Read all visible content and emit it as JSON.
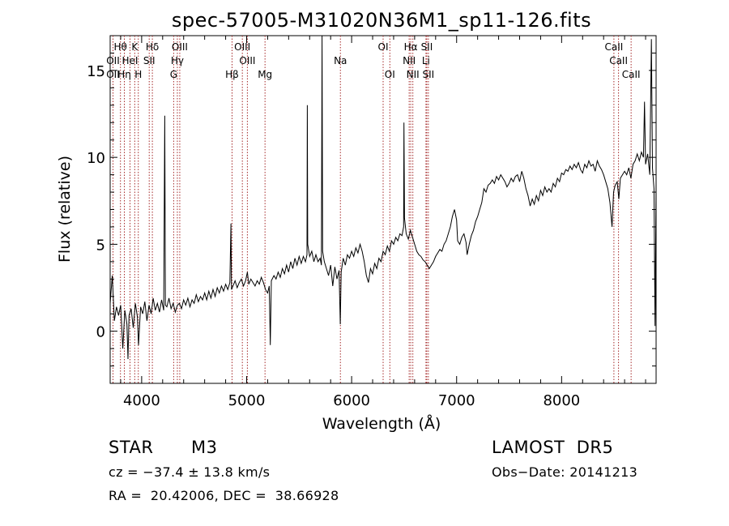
{
  "chart_data": {
    "type": "line",
    "title": "spec-57005-M31020N36M1_sp11-126.fits",
    "xlabel": "Wavelength (Å)",
    "ylabel": "Flux (relative)",
    "xlim": [
      3700,
      8900
    ],
    "ylim": [
      -3,
      17
    ],
    "xticks": [
      4000,
      5000,
      6000,
      7000,
      8000
    ],
    "yticks": [
      0,
      5,
      10,
      15
    ],
    "grid": false,
    "series": [
      {
        "points": [
          [
            3700,
            1.6
          ],
          [
            3720,
            3.2
          ],
          [
            3740,
            0.6
          ],
          [
            3760,
            1.4
          ],
          [
            3780,
            0.9
          ],
          [
            3800,
            1.5
          ],
          [
            3820,
            -1.0
          ],
          [
            3840,
            1.2
          ],
          [
            3860,
            0.4
          ],
          [
            3870,
            -1.6
          ],
          [
            3880,
            0.9
          ],
          [
            3900,
            1.3
          ],
          [
            3920,
            0.2
          ],
          [
            3940,
            1.6
          ],
          [
            3960,
            0.8
          ],
          [
            3970,
            -0.8
          ],
          [
            3990,
            1.4
          ],
          [
            4010,
            1.0
          ],
          [
            4030,
            1.7
          ],
          [
            4050,
            0.6
          ],
          [
            4070,
            1.5
          ],
          [
            4090,
            1.0
          ],
          [
            4110,
            1.9
          ],
          [
            4130,
            1.2
          ],
          [
            4150,
            1.6
          ],
          [
            4170,
            1.1
          ],
          [
            4190,
            1.8
          ],
          [
            4210,
            1.2
          ],
          [
            4220,
            12.4
          ],
          [
            4226,
            1.5
          ],
          [
            4240,
            1.4
          ],
          [
            4260,
            1.9
          ],
          [
            4280,
            1.3
          ],
          [
            4300,
            1.6
          ],
          [
            4320,
            1.1
          ],
          [
            4340,
            1.5
          ],
          [
            4360,
            1.6
          ],
          [
            4380,
            1.3
          ],
          [
            4400,
            1.8
          ],
          [
            4420,
            1.5
          ],
          [
            4440,
            1.9
          ],
          [
            4460,
            1.4
          ],
          [
            4480,
            1.8
          ],
          [
            4500,
            1.6
          ],
          [
            4520,
            2.1
          ],
          [
            4540,
            1.7
          ],
          [
            4560,
            2.0
          ],
          [
            4580,
            1.8
          ],
          [
            4600,
            2.2
          ],
          [
            4620,
            1.8
          ],
          [
            4640,
            2.3
          ],
          [
            4660,
            1.9
          ],
          [
            4680,
            2.4
          ],
          [
            4700,
            2.0
          ],
          [
            4720,
            2.5
          ],
          [
            4740,
            2.2
          ],
          [
            4760,
            2.6
          ],
          [
            4780,
            2.3
          ],
          [
            4800,
            2.7
          ],
          [
            4820,
            2.4
          ],
          [
            4840,
            2.8
          ],
          [
            4850,
            6.2
          ],
          [
            4856,
            2.4
          ],
          [
            4870,
            2.6
          ],
          [
            4890,
            2.9
          ],
          [
            4910,
            2.5
          ],
          [
            4930,
            2.8
          ],
          [
            4950,
            3.0
          ],
          [
            4970,
            2.6
          ],
          [
            4990,
            2.9
          ],
          [
            5007,
            3.4
          ],
          [
            5020,
            2.7
          ],
          [
            5040,
            3.0
          ],
          [
            5060,
            2.8
          ],
          [
            5080,
            2.6
          ],
          [
            5100,
            2.9
          ],
          [
            5120,
            2.7
          ],
          [
            5140,
            3.1
          ],
          [
            5160,
            2.8
          ],
          [
            5180,
            2.4
          ],
          [
            5200,
            2.2
          ],
          [
            5215,
            2.6
          ],
          [
            5225,
            -0.8
          ],
          [
            5235,
            2.9
          ],
          [
            5260,
            3.2
          ],
          [
            5280,
            3.0
          ],
          [
            5300,
            3.4
          ],
          [
            5320,
            3.1
          ],
          [
            5340,
            3.6
          ],
          [
            5360,
            3.3
          ],
          [
            5380,
            3.8
          ],
          [
            5400,
            3.4
          ],
          [
            5420,
            4.0
          ],
          [
            5440,
            3.6
          ],
          [
            5460,
            4.2
          ],
          [
            5480,
            3.8
          ],
          [
            5500,
            4.3
          ],
          [
            5520,
            3.9
          ],
          [
            5540,
            4.3
          ],
          [
            5560,
            4.0
          ],
          [
            5575,
            4.4
          ],
          [
            5578,
            13.0
          ],
          [
            5582,
            5.0
          ],
          [
            5600,
            4.3
          ],
          [
            5620,
            4.6
          ],
          [
            5640,
            4.0
          ],
          [
            5660,
            4.4
          ],
          [
            5680,
            4.0
          ],
          [
            5700,
            4.2
          ],
          [
            5712,
            3.8
          ],
          [
            5718,
            17.0
          ],
          [
            5724,
            4.6
          ],
          [
            5740,
            4.0
          ],
          [
            5760,
            3.6
          ],
          [
            5780,
            3.2
          ],
          [
            5800,
            3.8
          ],
          [
            5820,
            2.6
          ],
          [
            5840,
            3.7
          ],
          [
            5860,
            3.0
          ],
          [
            5880,
            3.5
          ],
          [
            5892,
            0.4
          ],
          [
            5900,
            3.4
          ],
          [
            5920,
            4.2
          ],
          [
            5940,
            3.8
          ],
          [
            5960,
            4.4
          ],
          [
            5980,
            4.2
          ],
          [
            6000,
            4.6
          ],
          [
            6020,
            4.3
          ],
          [
            6040,
            4.8
          ],
          [
            6060,
            4.5
          ],
          [
            6080,
            5.0
          ],
          [
            6100,
            4.6
          ],
          [
            6120,
            4.0
          ],
          [
            6140,
            3.2
          ],
          [
            6160,
            2.8
          ],
          [
            6180,
            3.6
          ],
          [
            6200,
            3.3
          ],
          [
            6220,
            3.9
          ],
          [
            6240,
            3.6
          ],
          [
            6260,
            4.2
          ],
          [
            6280,
            4.0
          ],
          [
            6300,
            4.6
          ],
          [
            6320,
            4.4
          ],
          [
            6340,
            4.9
          ],
          [
            6360,
            4.6
          ],
          [
            6380,
            5.2
          ],
          [
            6400,
            5.0
          ],
          [
            6420,
            5.4
          ],
          [
            6440,
            5.2
          ],
          [
            6460,
            5.6
          ],
          [
            6480,
            5.5
          ],
          [
            6495,
            6.0
          ],
          [
            6498,
            12.0
          ],
          [
            6504,
            6.5
          ],
          [
            6520,
            5.6
          ],
          [
            6540,
            5.3
          ],
          [
            6560,
            5.8
          ],
          [
            6580,
            5.4
          ],
          [
            6600,
            5.0
          ],
          [
            6620,
            4.6
          ],
          [
            6640,
            4.4
          ],
          [
            6660,
            4.3
          ],
          [
            6680,
            4.1
          ],
          [
            6700,
            4.0
          ],
          [
            6720,
            3.8
          ],
          [
            6740,
            3.6
          ],
          [
            6760,
            3.8
          ],
          [
            6780,
            4.0
          ],
          [
            6800,
            4.3
          ],
          [
            6820,
            4.5
          ],
          [
            6840,
            4.7
          ],
          [
            6860,
            4.6
          ],
          [
            6880,
            5.0
          ],
          [
            6900,
            5.2
          ],
          [
            6920,
            5.6
          ],
          [
            6940,
            6.0
          ],
          [
            6960,
            6.6
          ],
          [
            6980,
            7.0
          ],
          [
            7000,
            6.4
          ],
          [
            7010,
            5.2
          ],
          [
            7030,
            5.0
          ],
          [
            7050,
            5.4
          ],
          [
            7070,
            5.6
          ],
          [
            7090,
            5.1
          ],
          [
            7100,
            4.4
          ],
          [
            7120,
            5.0
          ],
          [
            7140,
            5.5
          ],
          [
            7160,
            5.8
          ],
          [
            7180,
            6.3
          ],
          [
            7200,
            6.6
          ],
          [
            7220,
            7.0
          ],
          [
            7240,
            7.4
          ],
          [
            7260,
            8.2
          ],
          [
            7280,
            8.0
          ],
          [
            7300,
            8.4
          ],
          [
            7320,
            8.5
          ],
          [
            7340,
            8.7
          ],
          [
            7360,
            8.5
          ],
          [
            7380,
            8.9
          ],
          [
            7400,
            8.7
          ],
          [
            7420,
            9.0
          ],
          [
            7440,
            8.8
          ],
          [
            7460,
            8.6
          ],
          [
            7480,
            8.3
          ],
          [
            7500,
            8.5
          ],
          [
            7520,
            8.8
          ],
          [
            7540,
            8.6
          ],
          [
            7560,
            8.9
          ],
          [
            7580,
            9.0
          ],
          [
            7600,
            8.6
          ],
          [
            7620,
            9.2
          ],
          [
            7640,
            8.8
          ],
          [
            7660,
            8.2
          ],
          [
            7680,
            7.8
          ],
          [
            7700,
            7.2
          ],
          [
            7720,
            7.6
          ],
          [
            7740,
            7.3
          ],
          [
            7760,
            7.8
          ],
          [
            7780,
            7.5
          ],
          [
            7800,
            8.1
          ],
          [
            7820,
            7.8
          ],
          [
            7840,
            8.3
          ],
          [
            7860,
            8.0
          ],
          [
            7880,
            8.2
          ],
          [
            7900,
            8.0
          ],
          [
            7920,
            8.5
          ],
          [
            7940,
            8.3
          ],
          [
            7960,
            8.8
          ],
          [
            7980,
            8.6
          ],
          [
            8000,
            9.1
          ],
          [
            8020,
            9.0
          ],
          [
            8040,
            9.3
          ],
          [
            8060,
            9.2
          ],
          [
            8080,
            9.5
          ],
          [
            8100,
            9.3
          ],
          [
            8120,
            9.6
          ],
          [
            8140,
            9.4
          ],
          [
            8160,
            9.7
          ],
          [
            8180,
            9.3
          ],
          [
            8200,
            9.1
          ],
          [
            8220,
            9.6
          ],
          [
            8240,
            9.4
          ],
          [
            8260,
            9.8
          ],
          [
            8280,
            9.5
          ],
          [
            8300,
            9.6
          ],
          [
            8320,
            9.2
          ],
          [
            8340,
            9.8
          ],
          [
            8360,
            9.5
          ],
          [
            8380,
            9.3
          ],
          [
            8400,
            9.0
          ],
          [
            8420,
            8.6
          ],
          [
            8440,
            8.2
          ],
          [
            8460,
            7.4
          ],
          [
            8480,
            6.0
          ],
          [
            8495,
            8.0
          ],
          [
            8510,
            8.4
          ],
          [
            8530,
            8.6
          ],
          [
            8545,
            7.6
          ],
          [
            8560,
            8.8
          ],
          [
            8580,
            9.0
          ],
          [
            8600,
            9.2
          ],
          [
            8620,
            9.0
          ],
          [
            8640,
            9.4
          ],
          [
            8660,
            8.8
          ],
          [
            8680,
            9.6
          ],
          [
            8700,
            9.8
          ],
          [
            8720,
            10.2
          ],
          [
            8740,
            9.8
          ],
          [
            8760,
            10.3
          ],
          [
            8780,
            10.0
          ],
          [
            8790,
            13.2
          ],
          [
            8800,
            9.6
          ],
          [
            8820,
            10.2
          ],
          [
            8840,
            9.0
          ],
          [
            8855,
            16.8
          ],
          [
            8865,
            9.4
          ],
          [
            8880,
            8.2
          ],
          [
            8890,
            0.3
          ],
          [
            8900,
            8.6
          ]
        ]
      }
    ],
    "annotations": [
      {
        "label": "OII",
        "x": 3727,
        "row": 2
      },
      {
        "label": "Hθ",
        "x": 3798,
        "row": 1
      },
      {
        "label": "OII",
        "x": 3727,
        "row": 3
      },
      {
        "label": "Hη",
        "x": 3835,
        "row": 3
      },
      {
        "label": "HeI",
        "x": 3889,
        "row": 2
      },
      {
        "label": "K",
        "x": 3934,
        "row": 1
      },
      {
        "label": "H",
        "x": 3968,
        "row": 3
      },
      {
        "label": "Hδ",
        "x": 4102,
        "row": 1
      },
      {
        "label": "SII",
        "x": 4072,
        "row": 2
      },
      {
        "label": "OIII",
        "x": 4363,
        "row": 1
      },
      {
        "label": "Hγ",
        "x": 4340,
        "row": 2
      },
      {
        "label": "G",
        "x": 4305,
        "row": 3
      },
      {
        "label": "OIII",
        "x": 4959,
        "row": 1
      },
      {
        "label": "OIII",
        "x": 5007,
        "row": 2
      },
      {
        "label": "Hβ",
        "x": 4861,
        "row": 3
      },
      {
        "label": "Mg",
        "x": 5175,
        "row": 3
      },
      {
        "label": "Na",
        "x": 5893,
        "row": 2
      },
      {
        "label": "OI",
        "x": 6300,
        "row": 1
      },
      {
        "label": "OI",
        "x": 6364,
        "row": 3
      },
      {
        "label": "Hα",
        "x": 6563,
        "row": 1
      },
      {
        "label": "SII",
        "x": 6716,
        "row": 1
      },
      {
        "label": "NII",
        "x": 6548,
        "row": 2
      },
      {
        "label": "Li",
        "x": 6708,
        "row": 2
      },
      {
        "label": "NII",
        "x": 6583,
        "row": 3
      },
      {
        "label": "SII",
        "x": 6731,
        "row": 3
      },
      {
        "label": "CaII",
        "x": 8498,
        "row": 1
      },
      {
        "label": "CaII",
        "x": 8542,
        "row": 2
      },
      {
        "label": "CaII",
        "x": 8662,
        "row": 3
      }
    ],
    "line_color": "#000000",
    "marker_color": "#a52a2a"
  },
  "info": {
    "obj_class": "STAR",
    "subclass": "M3",
    "survey": "LAMOST  DR5",
    "redshift": "cz = −37.4 ± 13.8 km/s",
    "obs_date": "Obs−Date: 20141213",
    "coords": "RA =  20.42006, DEC =  38.66928"
  }
}
